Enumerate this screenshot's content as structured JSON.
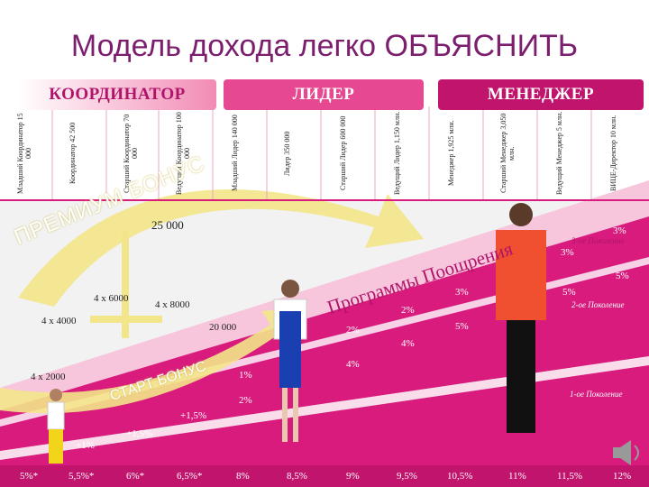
{
  "title": "Модель дохода легко ОБЪЯСНИТЬ",
  "headers": [
    "КООРДИНАТОР",
    "ЛИДЕР",
    "МЕНЕДЖЕР"
  ],
  "ranks": [
    "Младший Координатор 15 000",
    "Координатор 42 500",
    "Старший Координатор 70 000",
    "Ведущий Координатор 100 000",
    "Младший Лидер 140 000",
    "Лидер 350 000",
    "Старший Лидер 600 000",
    "Ведущий Лидер 1,150 млн.",
    "Менеджер 1,925 млн.",
    "Старший Менеджер 3,050 млн.",
    "Ведущий Менеджер 5 млн.",
    "ВИЦЕ-Директор 10 млн."
  ],
  "premium_bonus": "ПРЕМИУМ БОНУС",
  "start_bonus": "СТАРТ БОНУС",
  "program": "Программы Поощрения",
  "amounts": {
    "a25000": "25 000",
    "a20000": "20 000",
    "x6000": "4 х 6000",
    "x8000": "4 х 8000",
    "x4000": "4 х 4000",
    "x2000": "4 х 2000"
  },
  "percents": {
    "p1a": "1%",
    "p1b": "+1%",
    "p15a": "+1,5%",
    "p15b": "+1,5%",
    "p2a": "2%",
    "p2b": "2%",
    "p2c": "2%",
    "p3a": "3%",
    "p3b": "3%",
    "p3c": "3%",
    "p4a": "4%",
    "p4b": "4%",
    "p5a": "5%",
    "p5b": "5%",
    "p5c": "5%"
  },
  "generations": {
    "g1": "1-ое Поколение",
    "g2": "2-ое Поколение",
    "g3": "3-ое Поколение"
  },
  "bottom": [
    "5%*",
    "5,5%*",
    "6%*",
    "6,5%*",
    "8%",
    "8,5%",
    "9%",
    "9,5%",
    "10,5%",
    "11%",
    "11,5%",
    "12%"
  ],
  "colors": {
    "magenta": "#d81b7c",
    "pink": "#f28bb5",
    "yellow": "#f3e58a",
    "title": "#7b1e6e"
  }
}
